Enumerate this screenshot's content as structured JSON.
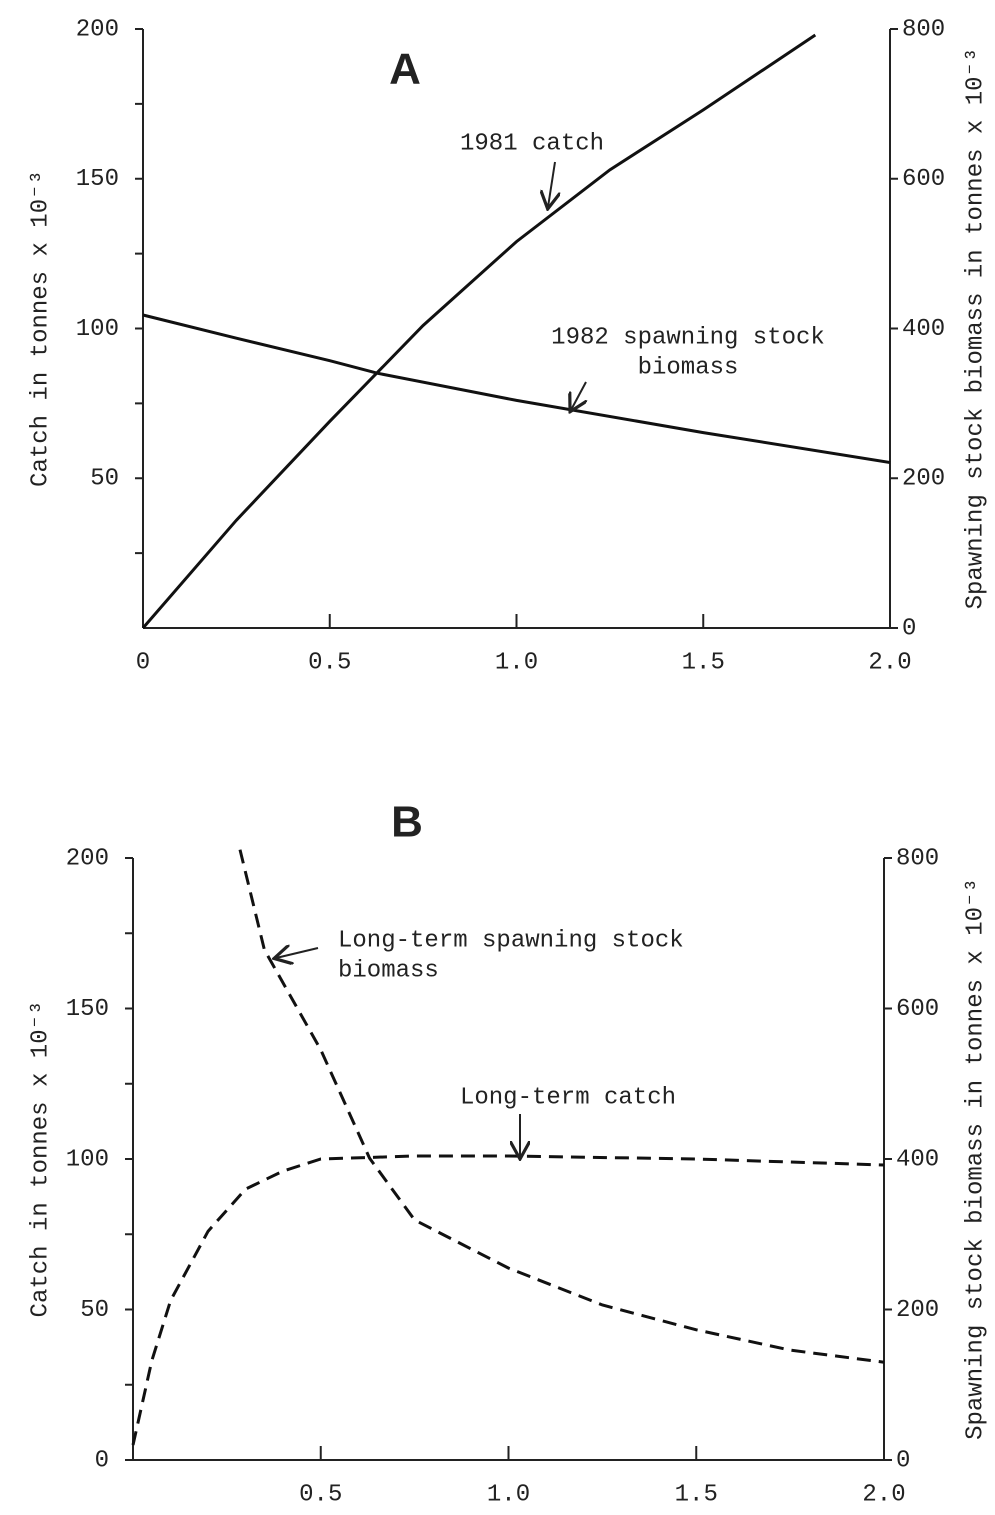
{
  "chart_data": [
    {
      "type": "line",
      "title": "A",
      "ylabel": "Catch in tonnes x 10⁻³",
      "y2label": "Spawning stock biomass in tonnes x 10⁻³",
      "xlim": [
        0,
        2
      ],
      "xticks": [
        0,
        0.5,
        {
          "value": 1,
          "label": "1.0"
        },
        1.5,
        {
          "value": 2,
          "label": "2.0"
        }
      ],
      "ylim": [
        0,
        200
      ],
      "yticks": [
        50,
        100,
        150,
        200
      ],
      "yminorticks": [
        25,
        75,
        125,
        175
      ],
      "y2lim": [
        0,
        800
      ],
      "y2ticks": [
        0,
        200,
        400,
        600,
        800
      ],
      "line_style": "solid",
      "series": [
        {
          "name": "1981 catch",
          "color": "#111",
          "x": [
            0,
            0.25,
            0.5,
            0.75,
            1,
            1.25,
            1.5,
            1.8
          ],
          "values": [
            0,
            36,
            69,
            101,
            129,
            153,
            173,
            198
          ]
        },
        {
          "name": "1982 spawning stock biomass",
          "color": "#111",
          "axis": "y2",
          "x": [
            0,
            0.25,
            0.5,
            0.63,
            1,
            1.5,
            2
          ],
          "values": [
            418,
            387,
            357,
            340,
            304,
            261,
            221
          ]
        }
      ],
      "annotations": [
        {
          "lines": [
            "1981 catch"
          ]
        },
        {
          "lines": [
            "1982 spawning stock",
            "biomass"
          ]
        }
      ]
    },
    {
      "type": "line",
      "title": "B",
      "ylabel": "Catch in tonnes x 10⁻³",
      "y2label": "Spawning stock biomass in tonnes x 10⁻³",
      "xlim": [
        0,
        2
      ],
      "xticks": [
        0.5,
        {
          "value": 1,
          "label": "1.0"
        },
        1.5,
        {
          "value": 2,
          "label": "2.0"
        }
      ],
      "ylim": [
        0,
        200
      ],
      "yticks": [
        0,
        50,
        100,
        150,
        200
      ],
      "yminorticks": [
        25,
        75,
        125,
        175
      ],
      "y2lim": [
        0,
        800
      ],
      "y2ticks": [
        0,
        200,
        400,
        600,
        800
      ],
      "line_style": "dashed",
      "series": [
        {
          "name": "Long-term spawning stock biomass",
          "color": "#111",
          "axis": "y2",
          "x": [
            0.285,
            0.35,
            0.5,
            0.63,
            0.75,
            1,
            1.25,
            1.5,
            1.75,
            2
          ],
          "values": [
            811,
            678,
            545,
            401,
            319,
            255,
            206,
            173,
            146,
            130
          ]
        },
        {
          "name": "Long-term catch",
          "color": "#111",
          "x": [
            0,
            0.05,
            0.1,
            0.2,
            0.3,
            0.4,
            0.5,
            0.75,
            1,
            1.5,
            2
          ],
          "values": [
            5,
            33,
            53,
            76,
            90,
            96,
            100,
            101,
            101,
            100,
            98
          ]
        }
      ],
      "annotations": [
        {
          "lines": [
            "Long-term spawning stock",
            "biomass"
          ]
        },
        {
          "lines": [
            "Long-term catch"
          ]
        }
      ]
    }
  ]
}
